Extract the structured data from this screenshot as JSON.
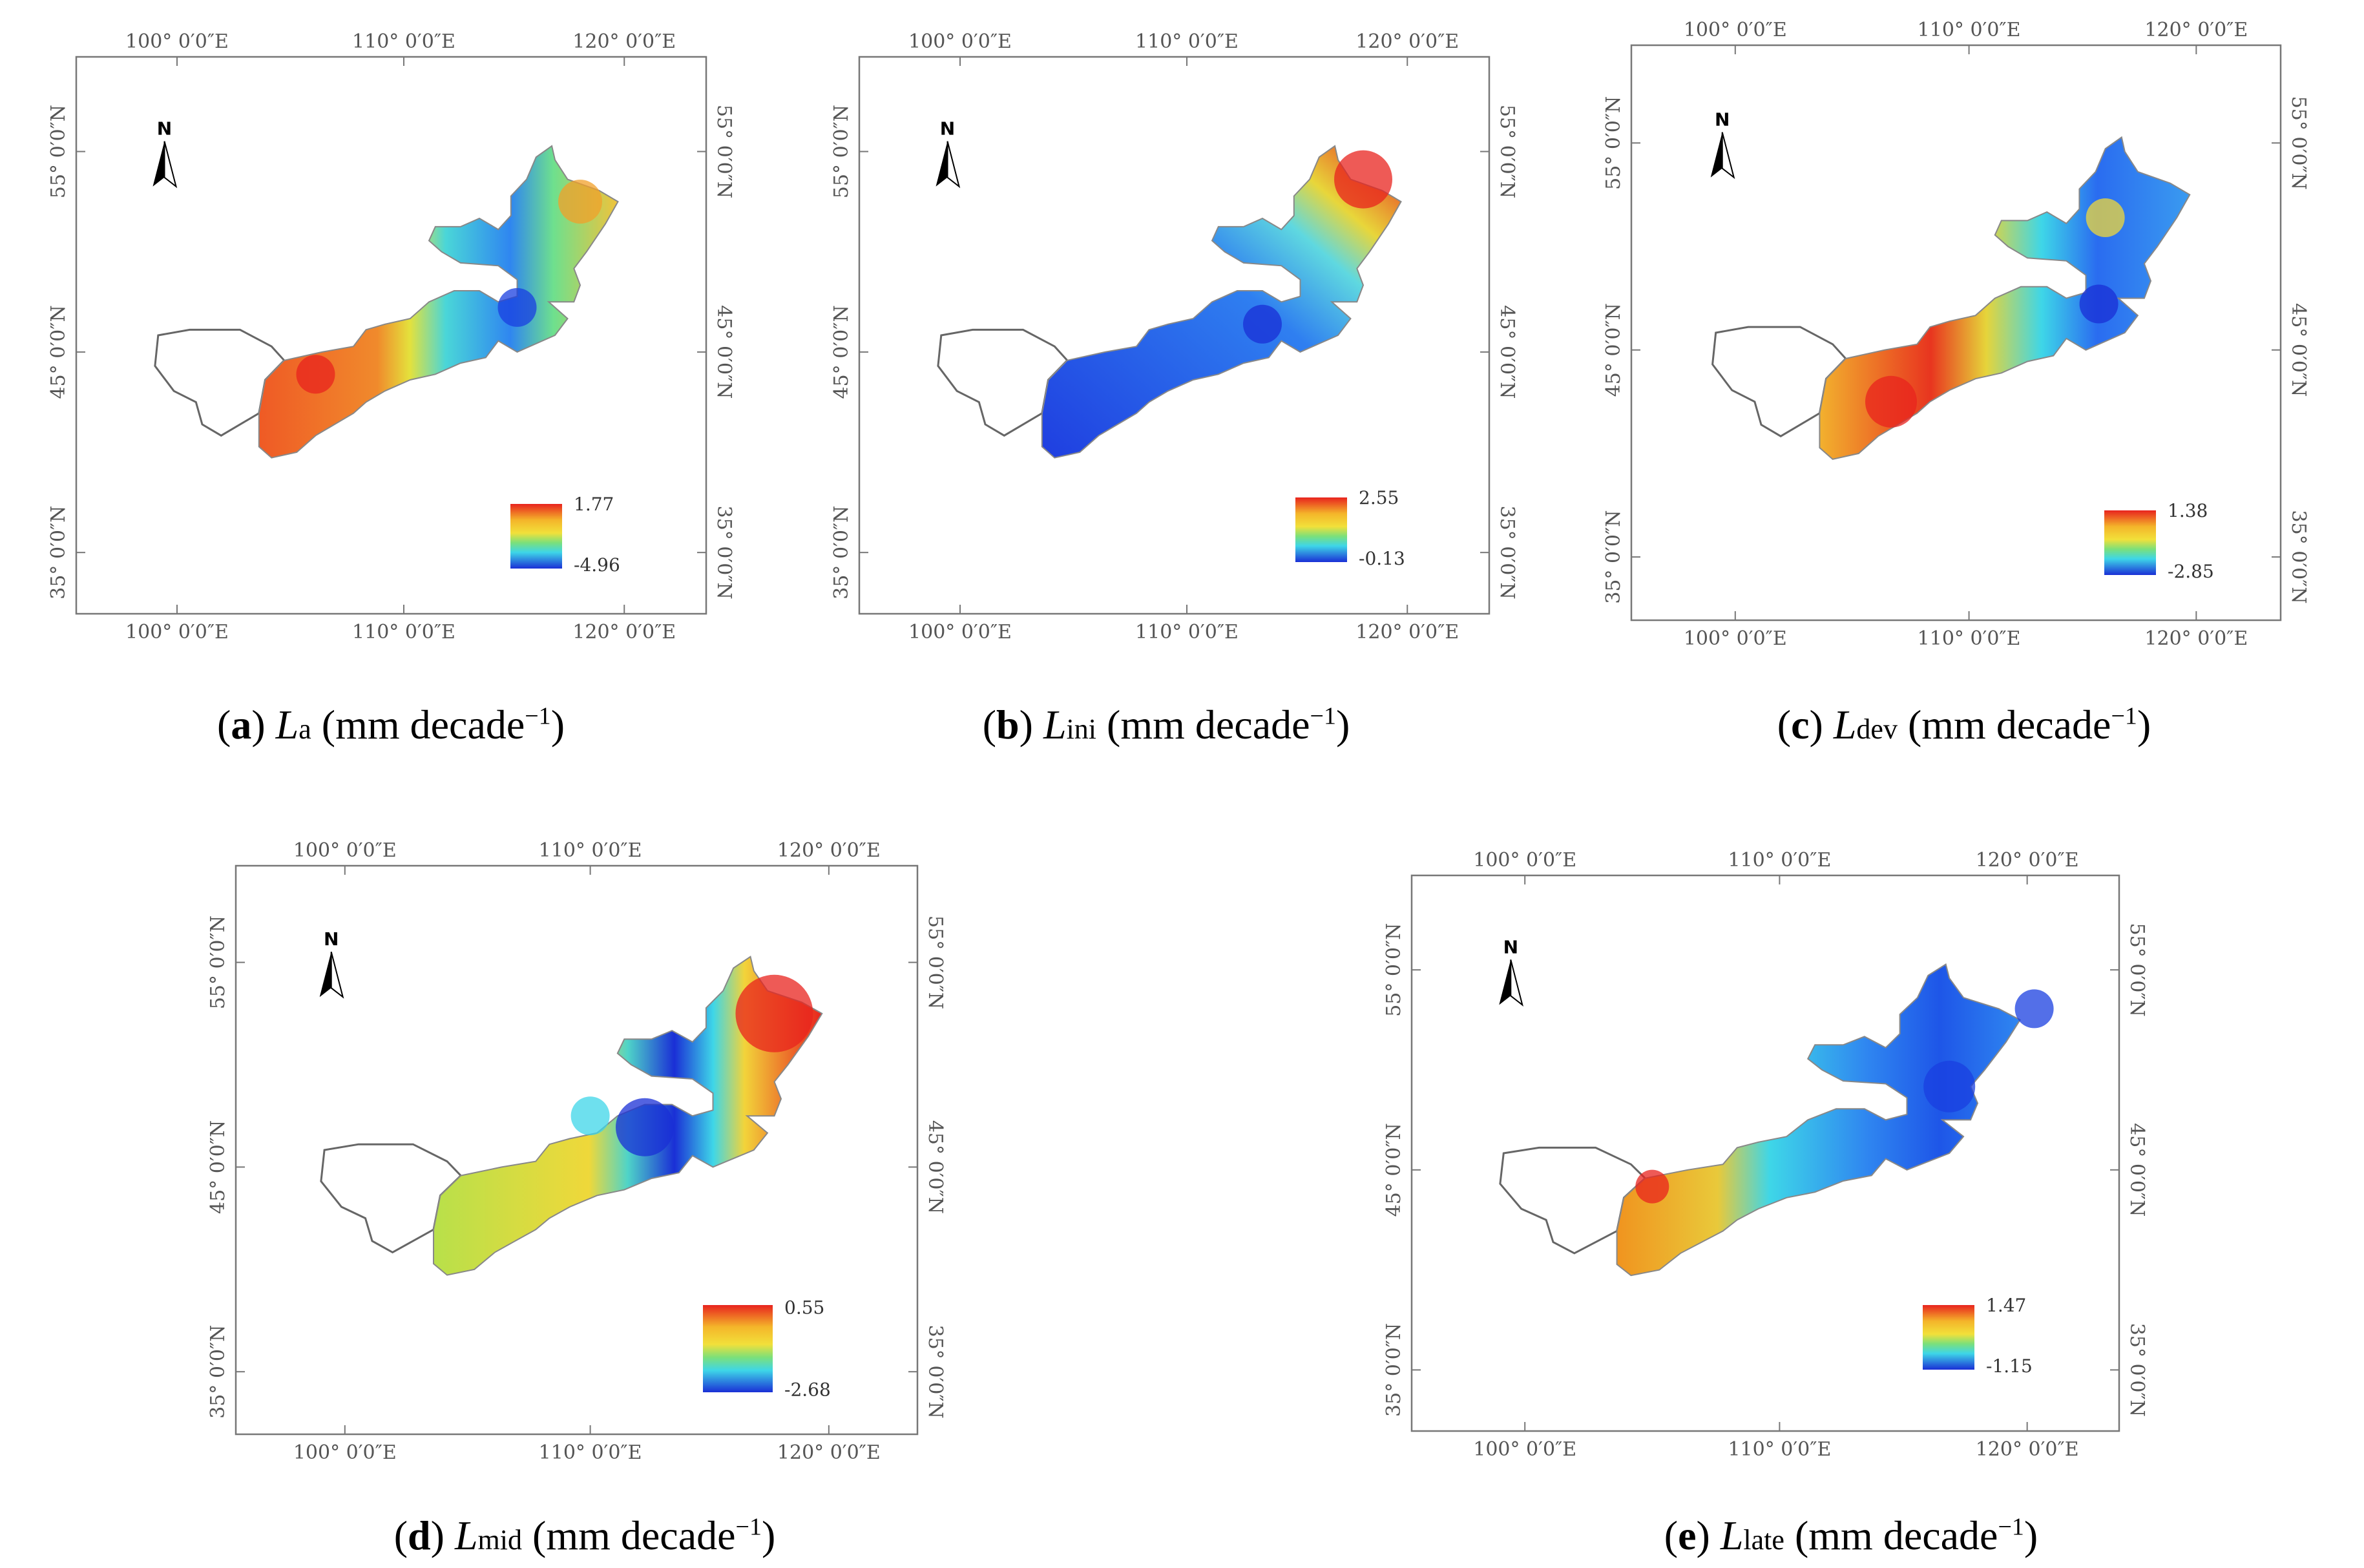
{
  "figure": {
    "axes": {
      "top_lon": [
        "100° 0′0″E",
        "110° 0′0″E",
        "120° 0′0″E"
      ],
      "bottom_lon": [
        "100° 0′0″E",
        "110° 0′0″E",
        "120° 0′0″E"
      ],
      "lat": [
        "55° 0′0″N",
        "45° 0′0″N",
        "35° 0′0″N"
      ],
      "north_label": "N"
    },
    "panels": [
      {
        "letter": "a",
        "symbol": "L",
        "subscript": "a",
        "unit": "(mm decade",
        "unit_sup": "−1",
        "unit_close": ")",
        "legend_max": "1.77",
        "legend_min": "-4.96"
      },
      {
        "letter": "b",
        "symbol": "L",
        "subscript": "ini",
        "unit": "(mm decade",
        "unit_sup": "−1",
        "unit_close": ")",
        "legend_max": "2.55",
        "legend_min": "-0.13"
      },
      {
        "letter": "c",
        "symbol": "L",
        "subscript": "dev",
        "unit": "(mm decade",
        "unit_sup": "−1",
        "unit_close": ")",
        "legend_max": "1.38",
        "legend_min": "-2.85"
      },
      {
        "letter": "d",
        "symbol": "L",
        "subscript": "mid",
        "unit": "(mm decade",
        "unit_sup": "−1",
        "unit_close": ")",
        "legend_max": "0.55",
        "legend_min": "-2.68"
      },
      {
        "letter": "e",
        "symbol": "L",
        "subscript": "late",
        "unit": "(mm decade",
        "unit_sup": "−1",
        "unit_close": ")",
        "legend_max": "1.47",
        "legend_min": "-1.15"
      }
    ],
    "colors": {
      "red": "#e8231e",
      "orange": "#f4882a",
      "yellow": "#f2e03a",
      "green": "#8fdc6a",
      "cyan": "#3ed6e8",
      "blue": "#2f86f0",
      "darkblue": "#1a2fd6",
      "outline": "#555555"
    }
  }
}
